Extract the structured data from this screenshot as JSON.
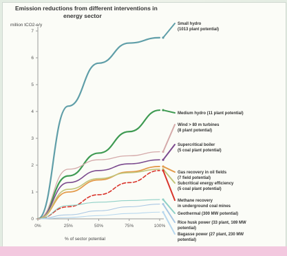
{
  "chart_data": {
    "type": "line",
    "title_lines": [
      "Emission reductions from different interventions in",
      "energy sector"
    ],
    "ylabel": "million tCO2-e/y",
    "xlabel": "% of sector potential",
    "x": [
      0,
      25,
      50,
      75,
      100
    ],
    "x_tick_labels": [
      "0%",
      "25%",
      "50%",
      "75%",
      "100%"
    ],
    "ylim": [
      0,
      7
    ],
    "y_ticks": [
      0,
      1,
      2,
      3,
      4,
      5,
      6,
      7
    ],
    "grid": false,
    "series": [
      {
        "name": "Small hydro (1013 plant potential)",
        "label_lines": [
          "Small hydro",
          "(1013 plant potential)"
        ],
        "color": "#5f9ea8",
        "width": 2.2,
        "dash": "",
        "values": [
          0,
          4.2,
          5.8,
          6.55,
          6.75
        ]
      },
      {
        "name": "Medium hydro (11 plant potential)",
        "label_lines": [
          "Medium hydro (11 plant potential)"
        ],
        "color": "#3e9a52",
        "width": 2.2,
        "dash": "",
        "values": [
          0,
          1.6,
          2.45,
          3.25,
          4.05
        ]
      },
      {
        "name": "Wind > 80 m turbines (8 plant potential)",
        "label_lines": [
          "Wind > 80 m turbines",
          "(8 plant potential)"
        ],
        "color": "#d4a9a9",
        "width": 1.3,
        "dash": "",
        "values": [
          0,
          1.85,
          2.2,
          2.35,
          2.5
        ]
      },
      {
        "name": "Supercritical boiler (5 coal plant potential)",
        "label_lines": [
          "Supercritical boiler",
          "(5 coal plant potential)"
        ],
        "color": "#7b4a8e",
        "width": 1.6,
        "dash": "",
        "values": [
          0,
          1.35,
          1.8,
          2.05,
          2.2
        ]
      },
      {
        "name": "Gas recovery in oil fields (7 field potential)",
        "label_lines": [
          "Gas recovery in oil fields",
          "(7 field potential)"
        ],
        "color": "#e39a4a",
        "width": 1.8,
        "dash": "",
        "values": [
          0,
          1.0,
          1.45,
          1.75,
          1.95
        ]
      },
      {
        "name": "Subcritical energy efficiency (5 coal plant potential)",
        "label_lines": [
          "Subcritical energy efficiency",
          "(5 coal plant potential)"
        ],
        "color": "#c2c57a",
        "width": 1.6,
        "dash": "",
        "values": [
          0,
          1.1,
          1.5,
          1.72,
          1.85
        ]
      },
      {
        "name": "Methane recovery in underground coal mines",
        "label_lines": [
          "Methane recovery",
          "in underground coal mines"
        ],
        "color": "#d9342b",
        "width": 1.6,
        "dash": "5,3",
        "values": [
          0,
          0.45,
          0.9,
          1.35,
          1.8
        ]
      },
      {
        "name": "Geothermal (300 MW potential)",
        "label_lines": [
          "Geothermal (300 MW potential)"
        ],
        "color": "#8fd0c6",
        "width": 1.1,
        "dash": "",
        "values": [
          0,
          0.5,
          0.62,
          0.68,
          0.72
        ]
      },
      {
        "name": "Rice husk power (33 plant, 169 MW potential)",
        "label_lines": [
          "Rice husk power (33 plant, 169 MW",
          "potential)"
        ],
        "color": "#a9c7e4",
        "width": 1.1,
        "dash": "",
        "values": [
          0,
          0.15,
          0.3,
          0.45,
          0.55
        ]
      },
      {
        "name": "Bagasse power (27 plant, 230 MW potential)",
        "label_lines": [
          "Bagasse power (27 plant, 230 MW",
          "potential)"
        ],
        "color": "#b8d8ee",
        "width": 1.1,
        "dash": "",
        "values": [
          0,
          0.05,
          0.12,
          0.2,
          0.25
        ]
      }
    ]
  }
}
